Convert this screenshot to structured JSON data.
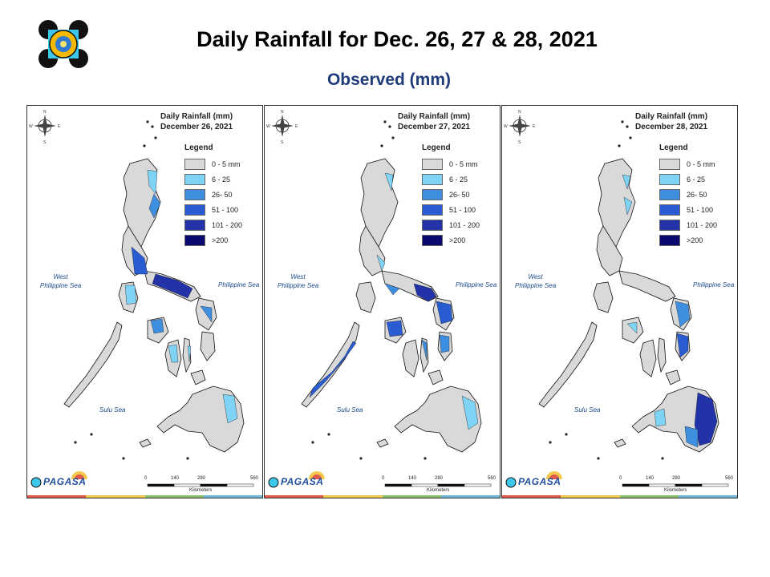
{
  "header": {
    "title": "Daily Rainfall for Dec. 26, 27 & 28, 2021",
    "subtitle": "Observed (mm)"
  },
  "legend": {
    "title": "Legend",
    "classes": [
      {
        "label": "0 - 5 mm",
        "color": "#d9d9d9"
      },
      {
        "label": "6 - 25",
        "color": "#7fd3f5"
      },
      {
        "label": "26- 50",
        "color": "#3f8fe0"
      },
      {
        "label": "51 - 100",
        "color": "#2a5cd1"
      },
      {
        "label": "101 - 200",
        "color": "#2233a8"
      },
      {
        "label": ">200",
        "color": "#0a0a6e"
      }
    ]
  },
  "seas": {
    "west": "West\nPhilippine Sea",
    "east": "Philippine Sea",
    "south": "Sulu Sea"
  },
  "scale": {
    "ticks": [
      "0",
      "140",
      "280",
      "560"
    ],
    "unit": "Kilometers"
  },
  "brand": {
    "name": "PAGASA"
  },
  "panels": [
    {
      "title_line1": "Daily Rainfall (mm)",
      "title_line2": "December 26, 2021"
    },
    {
      "title_line1": "Daily Rainfall (mm)",
      "title_line2": "December 27, 2021"
    },
    {
      "title_line1": "Daily Rainfall (mm)",
      "title_line2": "December 28, 2021"
    }
  ],
  "stripe_colors": [
    "#e05a4a",
    "#f2c94c",
    "#8cc06a",
    "#6fb6d8"
  ]
}
